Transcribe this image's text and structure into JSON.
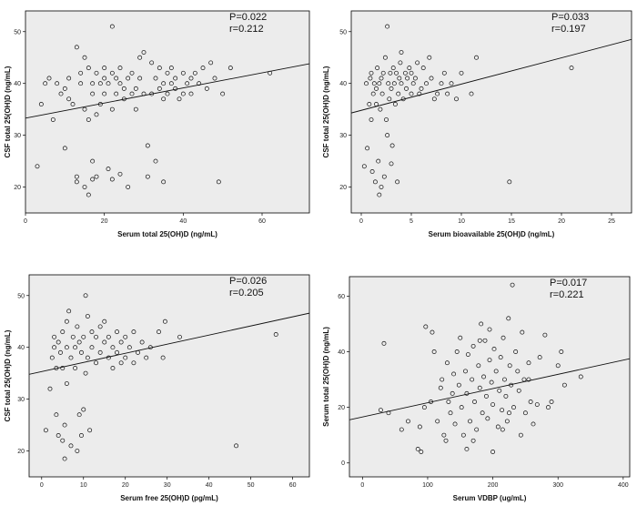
{
  "chart_data": [
    {
      "type": "scatter",
      "id": "tl",
      "xlabel": "Serum total 25(OH)D (ng/mL)",
      "ylabel": "CSF total 25(OH)D (ng/mL)",
      "stat_p": "P=0.022",
      "stat_r": "r=0.212",
      "xlim": [
        0,
        72
      ],
      "ylim": [
        15,
        54
      ],
      "xticks": [
        "0",
        "20",
        "40",
        "60"
      ],
      "yticks": [
        "20",
        "30",
        "40",
        "50"
      ],
      "fit": {
        "x": [
          0,
          72
        ],
        "y": [
          33.3,
          43.8
        ]
      },
      "points": [
        [
          3,
          24
        ],
        [
          4,
          36
        ],
        [
          5,
          40
        ],
        [
          6,
          41
        ],
        [
          7,
          33
        ],
        [
          8,
          40
        ],
        [
          9,
          38
        ],
        [
          10,
          27.5
        ],
        [
          10,
          39
        ],
        [
          11,
          37
        ],
        [
          11,
          41
        ],
        [
          12,
          36
        ],
        [
          13,
          47
        ],
        [
          13,
          21
        ],
        [
          13,
          22
        ],
        [
          14,
          42
        ],
        [
          14,
          40
        ],
        [
          15,
          35
        ],
        [
          15,
          45
        ],
        [
          15,
          20
        ],
        [
          16,
          18.5
        ],
        [
          16,
          33
        ],
        [
          16,
          43
        ],
        [
          17,
          25
        ],
        [
          17,
          38
        ],
        [
          17,
          40
        ],
        [
          17,
          21.5
        ],
        [
          18,
          42
        ],
        [
          18,
          34
        ],
        [
          18,
          22
        ],
        [
          19,
          40
        ],
        [
          19,
          36
        ],
        [
          20,
          43
        ],
        [
          20,
          41
        ],
        [
          20,
          38
        ],
        [
          21,
          40
        ],
        [
          21,
          23.5
        ],
        [
          22,
          42
        ],
        [
          22,
          35
        ],
        [
          22,
          21.5
        ],
        [
          22,
          51
        ],
        [
          23,
          38
        ],
        [
          23,
          41
        ],
        [
          24,
          43
        ],
        [
          24,
          40
        ],
        [
          24,
          22.5
        ],
        [
          25,
          37
        ],
        [
          25,
          39
        ],
        [
          26,
          41
        ],
        [
          26,
          20
        ],
        [
          27,
          42
        ],
        [
          27,
          38
        ],
        [
          28,
          39
        ],
        [
          28,
          35
        ],
        [
          29,
          41
        ],
        [
          29,
          45
        ],
        [
          30,
          46
        ],
        [
          30,
          38
        ],
        [
          31,
          28
        ],
        [
          31,
          22
        ],
        [
          32,
          44
        ],
        [
          32,
          38
        ],
        [
          33,
          41
        ],
        [
          33,
          25
        ],
        [
          34,
          43
        ],
        [
          34,
          39
        ],
        [
          35,
          40
        ],
        [
          35,
          37
        ],
        [
          35,
          21
        ],
        [
          36,
          42
        ],
        [
          36,
          38
        ],
        [
          37,
          40
        ],
        [
          37,
          43
        ],
        [
          38,
          39
        ],
        [
          38,
          41
        ],
        [
          39,
          37
        ],
        [
          40,
          42
        ],
        [
          40,
          38
        ],
        [
          41,
          40
        ],
        [
          42,
          41
        ],
        [
          42,
          38
        ],
        [
          43,
          42
        ],
        [
          44,
          40
        ],
        [
          45,
          43
        ],
        [
          46,
          39
        ],
        [
          47,
          44
        ],
        [
          48,
          41
        ],
        [
          49,
          21
        ],
        [
          50,
          38
        ],
        [
          52,
          43
        ],
        [
          62,
          42
        ]
      ]
    },
    {
      "type": "scatter",
      "id": "tr",
      "xlabel": "Serum bioavailable 25(OH)D (ng/mL)",
      "ylabel": "CSF total 25(OH)D (ng/mL)",
      "stat_p": "P=0.033",
      "stat_r": "r=0.197",
      "xlim": [
        -1,
        27
      ],
      "ylim": [
        15,
        54
      ],
      "xticks": [
        "0",
        "5",
        "10",
        "15",
        "20",
        "25"
      ],
      "yticks": [
        "20",
        "30",
        "40",
        "50"
      ],
      "fit": {
        "x": [
          -1,
          27
        ],
        "y": [
          34.3,
          48.5
        ]
      },
      "points": [
        [
          0.3,
          24
        ],
        [
          0.5,
          40
        ],
        [
          0.6,
          27.5
        ],
        [
          0.8,
          36
        ],
        [
          0.9,
          41
        ],
        [
          1,
          42
        ],
        [
          1,
          33
        ],
        [
          1.1,
          23
        ],
        [
          1.2,
          38
        ],
        [
          1.3,
          40
        ],
        [
          1.4,
          21
        ],
        [
          1.5,
          39
        ],
        [
          1.5,
          36
        ],
        [
          1.6,
          43
        ],
        [
          1.7,
          25
        ],
        [
          1.8,
          40
        ],
        [
          1.8,
          18.5
        ],
        [
          1.9,
          35
        ],
        [
          2,
          41
        ],
        [
          2,
          20
        ],
        [
          2.1,
          38
        ],
        [
          2.2,
          42
        ],
        [
          2.3,
          22
        ],
        [
          2.4,
          45
        ],
        [
          2.5,
          33
        ],
        [
          2.6,
          30
        ],
        [
          2.6,
          51
        ],
        [
          2.7,
          40
        ],
        [
          2.8,
          37
        ],
        [
          2.9,
          42
        ],
        [
          3,
          24.5
        ],
        [
          3,
          39
        ],
        [
          3.1,
          28
        ],
        [
          3.2,
          43
        ],
        [
          3.3,
          40
        ],
        [
          3.4,
          36
        ],
        [
          3.5,
          42
        ],
        [
          3.6,
          21
        ],
        [
          3.7,
          38
        ],
        [
          3.8,
          41
        ],
        [
          3.9,
          44
        ],
        [
          4,
          40
        ],
        [
          4,
          46
        ],
        [
          4.2,
          37
        ],
        [
          4.4,
          42
        ],
        [
          4.5,
          39
        ],
        [
          4.6,
          41
        ],
        [
          4.8,
          43
        ],
        [
          5,
          38
        ],
        [
          5,
          42
        ],
        [
          5.2,
          40
        ],
        [
          5.4,
          41
        ],
        [
          5.6,
          44
        ],
        [
          5.8,
          38
        ],
        [
          6,
          39
        ],
        [
          6.2,
          43
        ],
        [
          6.5,
          40
        ],
        [
          6.8,
          45
        ],
        [
          7,
          41
        ],
        [
          7.3,
          37
        ],
        [
          7.6,
          38
        ],
        [
          8,
          40
        ],
        [
          8.3,
          42
        ],
        [
          8.6,
          38
        ],
        [
          9,
          40
        ],
        [
          9.5,
          37
        ],
        [
          10,
          42
        ],
        [
          11,
          38
        ],
        [
          11.5,
          45
        ],
        [
          14.8,
          21
        ],
        [
          21,
          43
        ]
      ]
    },
    {
      "type": "scatter",
      "id": "bl",
      "xlabel": "Serum free 25(OH)D (pg/mL)",
      "ylabel": "CSF total 25(OH)D (ng/mL)",
      "stat_p": "P=0.026",
      "stat_r": "r=0.205",
      "xlim": [
        -3,
        64
      ],
      "ylim": [
        15,
        54
      ],
      "xticks": [
        "0",
        "10",
        "20",
        "30",
        "40",
        "50",
        "60"
      ],
      "yticks": [
        "20",
        "30",
        "40",
        "50"
      ],
      "fit": {
        "x": [
          -3,
          64
        ],
        "y": [
          34.8,
          46.6
        ]
      },
      "points": [
        [
          1,
          24
        ],
        [
          2,
          32
        ],
        [
          2.5,
          38
        ],
        [
          3,
          40
        ],
        [
          3,
          42
        ],
        [
          3.5,
          36
        ],
        [
          3.5,
          27
        ],
        [
          4,
          41
        ],
        [
          4,
          23
        ],
        [
          4.5,
          39
        ],
        [
          5,
          43
        ],
        [
          5,
          36
        ],
        [
          5,
          22
        ],
        [
          5.5,
          25
        ],
        [
          5.5,
          18.5
        ],
        [
          6,
          40
        ],
        [
          6,
          45
        ],
        [
          6,
          33
        ],
        [
          6.5,
          47
        ],
        [
          7,
          38
        ],
        [
          7,
          21
        ],
        [
          7.5,
          42
        ],
        [
          8,
          40
        ],
        [
          8,
          36
        ],
        [
          8.5,
          44
        ],
        [
          8.5,
          20
        ],
        [
          9,
          41
        ],
        [
          9,
          27
        ],
        [
          9.5,
          39
        ],
        [
          9.5,
          23
        ],
        [
          10,
          28
        ],
        [
          10,
          42
        ],
        [
          10.5,
          35
        ],
        [
          10.5,
          50
        ],
        [
          11,
          38
        ],
        [
          11,
          46
        ],
        [
          11.5,
          24
        ],
        [
          12,
          40
        ],
        [
          12,
          43
        ],
        [
          13,
          37
        ],
        [
          13,
          42
        ],
        [
          14,
          44
        ],
        [
          14,
          39
        ],
        [
          15,
          41
        ],
        [
          15,
          45
        ],
        [
          16,
          38
        ],
        [
          16,
          42
        ],
        [
          17,
          40
        ],
        [
          17,
          36
        ],
        [
          18,
          43
        ],
        [
          18,
          39
        ],
        [
          19,
          41
        ],
        [
          19,
          37
        ],
        [
          20,
          38
        ],
        [
          20,
          42
        ],
        [
          21,
          40
        ],
        [
          22,
          37
        ],
        [
          22,
          43
        ],
        [
          23,
          39
        ],
        [
          24,
          41
        ],
        [
          25,
          38
        ],
        [
          26,
          40
        ],
        [
          28,
          43
        ],
        [
          29,
          38
        ],
        [
          29.5,
          45
        ],
        [
          33,
          42
        ],
        [
          46.5,
          21
        ],
        [
          56,
          42.5
        ]
      ]
    },
    {
      "type": "scatter",
      "id": "br",
      "xlabel": "Serum VDBP (ug/mL)",
      "ylabel": "Serum total 25(OH)D (ng/mL)",
      "stat_p": "P=0.017",
      "stat_r": "r=0.221",
      "xlim": [
        -20,
        410
      ],
      "ylim": [
        -5,
        67
      ],
      "xticks": [
        "0",
        "100",
        "200",
        "300",
        "400"
      ],
      "yticks": [
        "0",
        "20",
        "40",
        "60"
      ],
      "fit": {
        "x": [
          -20,
          410
        ],
        "y": [
          15.5,
          37.5
        ]
      },
      "points": [
        [
          28,
          19
        ],
        [
          33,
          43
        ],
        [
          40,
          18
        ],
        [
          85,
          5
        ],
        [
          88,
          13
        ],
        [
          90,
          4
        ],
        [
          97,
          49
        ],
        [
          105,
          22
        ],
        [
          107,
          47
        ],
        [
          115,
          15
        ],
        [
          120,
          27
        ],
        [
          122,
          30
        ],
        [
          125,
          10
        ],
        [
          128,
          8
        ],
        [
          130,
          36
        ],
        [
          132,
          22
        ],
        [
          135,
          18
        ],
        [
          138,
          25
        ],
        [
          140,
          32
        ],
        [
          142,
          14
        ],
        [
          145,
          40
        ],
        [
          148,
          28
        ],
        [
          150,
          45
        ],
        [
          152,
          20
        ],
        [
          155,
          10
        ],
        [
          158,
          33
        ],
        [
          160,
          25
        ],
        [
          162,
          39
        ],
        [
          165,
          15
        ],
        [
          168,
          30
        ],
        [
          170,
          42
        ],
        [
          172,
          22
        ],
        [
          175,
          12
        ],
        [
          178,
          35
        ],
        [
          180,
          27
        ],
        [
          182,
          50
        ],
        [
          184,
          18
        ],
        [
          186,
          31
        ],
        [
          188,
          44
        ],
        [
          190,
          24
        ],
        [
          192,
          16
        ],
        [
          195,
          37
        ],
        [
          198,
          29
        ],
        [
          200,
          21
        ],
        [
          202,
          41
        ],
        [
          205,
          33
        ],
        [
          208,
          13
        ],
        [
          210,
          26
        ],
        [
          212,
          38
        ],
        [
          214,
          19
        ],
        [
          216,
          45
        ],
        [
          218,
          30
        ],
        [
          220,
          24
        ],
        [
          222,
          15
        ],
        [
          224,
          52
        ],
        [
          226,
          35
        ],
        [
          228,
          28
        ],
        [
          230,
          64
        ],
        [
          232,
          20
        ],
        [
          235,
          40
        ],
        [
          238,
          33
        ],
        [
          240,
          26
        ],
        [
          243,
          10
        ],
        [
          245,
          47
        ],
        [
          248,
          30
        ],
        [
          250,
          18
        ],
        [
          255,
          36
        ],
        [
          258,
          22
        ],
        [
          262,
          14
        ],
        [
          268,
          21
        ],
        [
          272,
          38
        ],
        [
          280,
          46
        ],
        [
          290,
          22
        ],
        [
          300,
          35
        ],
        [
          305,
          40
        ],
        [
          310,
          28
        ],
        [
          335,
          31
        ],
        [
          60,
          12
        ],
        [
          70,
          15
        ],
        [
          95,
          20
        ],
        [
          110,
          40
        ],
        [
          160,
          5
        ],
        [
          170,
          8
        ],
        [
          200,
          4
        ],
        [
          215,
          12
        ],
        [
          225,
          18
        ],
        [
          255,
          30
        ],
        [
          285,
          20
        ],
        [
          180,
          44
        ],
        [
          195,
          48
        ]
      ]
    }
  ]
}
